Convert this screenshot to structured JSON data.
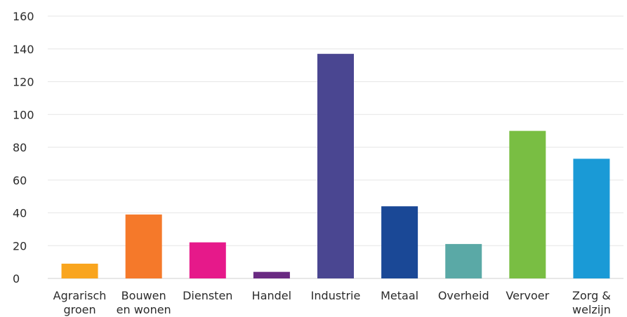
{
  "chart_data": {
    "type": "bar",
    "title": "",
    "xlabel": "",
    "ylabel": "",
    "ylim": [
      0,
      160
    ],
    "yticks": [
      0,
      20,
      40,
      60,
      80,
      100,
      120,
      140,
      160
    ],
    "grid": true,
    "categories": [
      [
        "Agrarisch",
        "groen"
      ],
      [
        "Bouwen",
        "en wonen"
      ],
      [
        "Diensten"
      ],
      [
        "Handel"
      ],
      [
        "Industrie"
      ],
      [
        "Metaal"
      ],
      [
        "Overheid"
      ],
      [
        "Vervoer"
      ],
      [
        "Zorg &",
        "welzijn"
      ]
    ],
    "values": [
      9,
      39,
      22,
      4,
      137,
      44,
      21,
      90,
      73
    ],
    "colors": [
      "#F9A51E",
      "#F5792A",
      "#E6198A",
      "#6A2A82",
      "#4A4691",
      "#1A4896",
      "#5AA9A6",
      "#79BE43",
      "#1A9AD6"
    ]
  }
}
